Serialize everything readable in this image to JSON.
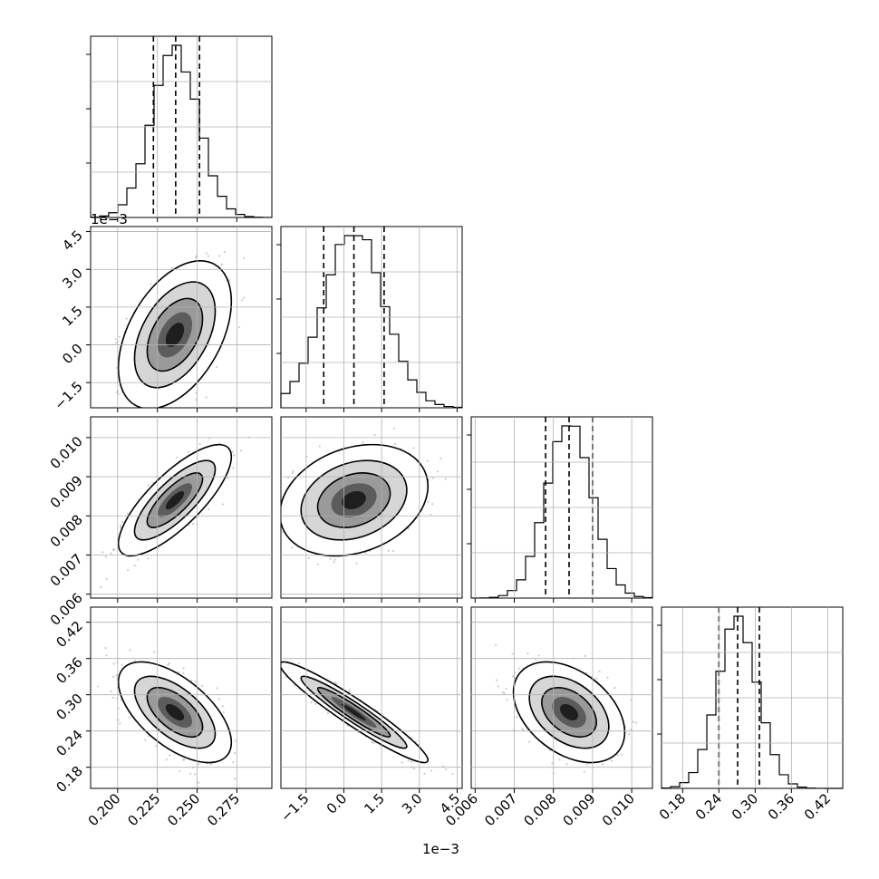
{
  "chart_data": {
    "type": "corner",
    "parameters": [
      {
        "index": 0,
        "range": [
          0.183,
          0.297
        ],
        "ticks": [
          0.2,
          0.225,
          0.25,
          0.275
        ],
        "tick_labels": [
          "0.200",
          "0.225",
          "0.250",
          "0.275"
        ],
        "mean": 0.236,
        "sd": 0.0145,
        "quantiles": [
          0.2225,
          0.2365,
          0.2515
        ]
      },
      {
        "index": 1,
        "range": [
          -2.5,
          4.7
        ],
        "scale_label": "1e−3",
        "ticks": [
          -1.5,
          0.0,
          1.5,
          3.0,
          4.5
        ],
        "tick_labels": [
          "−1.5",
          "0.0",
          "1.5",
          "3.0",
          "4.5"
        ],
        "mean": 0.4,
        "sd": 1.2,
        "quantiles": [
          -0.8,
          0.4,
          1.6
        ]
      },
      {
        "index": 2,
        "range": [
          0.0059,
          0.01053
        ],
        "ticks": [
          0.006,
          0.007,
          0.008,
          0.009,
          0.01
        ],
        "tick_labels": [
          "0.006",
          "0.007",
          "0.008",
          "0.009",
          "0.010"
        ],
        "mean": 0.0084,
        "sd": 0.00058,
        "quantiles": [
          0.0078,
          0.0084,
          0.009
        ]
      },
      {
        "index": 3,
        "range": [
          0.145,
          0.445
        ],
        "ticks": [
          0.18,
          0.24,
          0.3,
          0.36,
          0.42
        ],
        "tick_labels": [
          "0.18",
          "0.24",
          "0.30",
          "0.36",
          "0.42"
        ],
        "mean": 0.271,
        "sd": 0.034,
        "quantiles": [
          0.24,
          0.271,
          0.307
        ]
      }
    ],
    "correlations": {
      "1_0": 0.45,
      "2_0": 0.78,
      "2_1": 0.25,
      "3_0": -0.6,
      "3_1": -0.95,
      "3_2": -0.4
    },
    "axis_scale_labels": {
      "y_row_1": "1e−3",
      "x_col_1": "1e−3"
    },
    "grid": true,
    "quantile_lines": "dashed",
    "contours": "filled density with 3 contour levels"
  },
  "colors": {
    "points": "#8c8c8c",
    "lines": "#000000",
    "grid": "#b0b0b0",
    "background": "#ffffff"
  }
}
